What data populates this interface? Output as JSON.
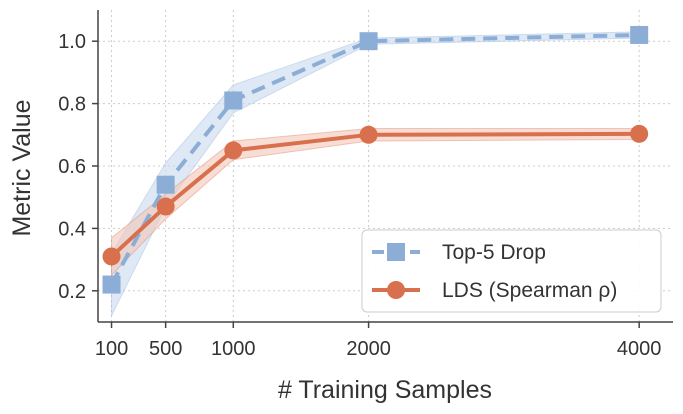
{
  "chart_data": {
    "type": "line",
    "xlabel": "# Training Samples",
    "ylabel": "Metric Value",
    "xlim": [
      0,
      4250
    ],
    "ylim": [
      0.1,
      1.1
    ],
    "x_ticks": [
      100,
      500,
      1000,
      2000,
      4000
    ],
    "y_ticks": [
      0.2,
      0.4,
      0.6,
      0.8,
      1.0
    ],
    "x_tick_labels": [
      "100",
      "500",
      "1000",
      "2000",
      "4000"
    ],
    "y_tick_labels": [
      "0.2",
      "0.4",
      "0.6",
      "0.8",
      "1.0"
    ],
    "grid": true,
    "legend_position": "bottom-right",
    "x": [
      100,
      500,
      1000,
      2000,
      4000
    ],
    "series": [
      {
        "name": "Top-5 Drop",
        "values": [
          0.22,
          0.54,
          0.81,
          1.0,
          1.02
        ],
        "lower": [
          0.12,
          0.47,
          0.77,
          0.99,
          1.01
        ],
        "upper": [
          0.32,
          0.61,
          0.86,
          1.01,
          1.03
        ],
        "color": "#8badd6",
        "band_color": "#c9daf0",
        "line_style": "dashed",
        "marker": "square"
      },
      {
        "name": "LDS (Spearman ρ)",
        "values": [
          0.31,
          0.47,
          0.65,
          0.7,
          0.703
        ],
        "lower": [
          0.25,
          0.43,
          0.62,
          0.68,
          0.685
        ],
        "upper": [
          0.37,
          0.51,
          0.68,
          0.72,
          0.72
        ],
        "color": "#d9704d",
        "band_color": "#f2c7b8",
        "line_style": "solid",
        "marker": "circle"
      }
    ]
  }
}
